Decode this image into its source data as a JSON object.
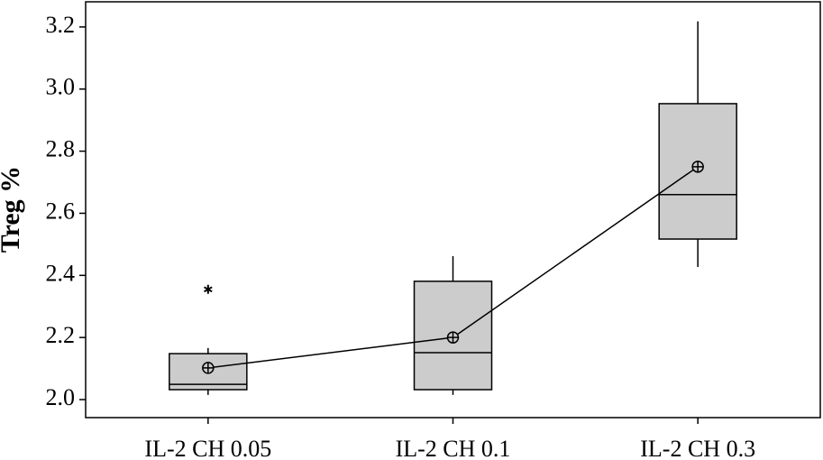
{
  "chart_data": {
    "type": "box",
    "ylabel": "Treg %",
    "categories": [
      "IL-2 CH 0.05",
      "IL-2 CH 0.1",
      "IL-2 CH 0.3"
    ],
    "min": [
      2.015,
      2.015,
      2.427
    ],
    "q1": [
      2.032,
      2.032,
      2.517
    ],
    "median": [
      2.049,
      2.151,
      2.66
    ],
    "q3": [
      2.148,
      2.381,
      2.953
    ],
    "max": [
      2.166,
      2.462,
      3.218
    ],
    "mean": [
      2.102,
      2.2,
      2.75
    ],
    "outliers": [
      [
        2.355
      ],
      [],
      []
    ],
    "color": "#cccccc",
    "mean_line": true,
    "ylim": [
      1.942,
      3.281
    ],
    "yticks": [
      {
        "value": 2.0,
        "label": "2.0"
      },
      2.2,
      2.4,
      2.6,
      2.8,
      {
        "value": 3.0,
        "label": "3.0"
      },
      3.2
    ]
  }
}
